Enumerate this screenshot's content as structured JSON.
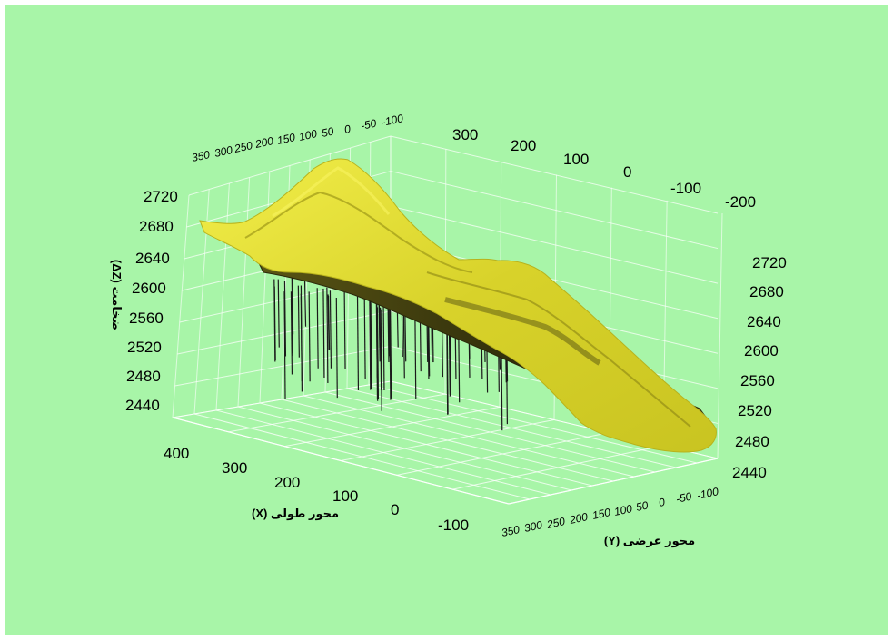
{
  "chart_data": {
    "type": "surface-3d",
    "colors": {
      "background": "#a8f5a8",
      "surface": "#e4e02c",
      "surface_shadow": "#3c3a10",
      "borehole": "#1a1a1a",
      "grid": "#ffffff"
    },
    "axes": {
      "x": {
        "label": "محور طولی (X)",
        "ticks": [
          "400",
          "300",
          "200",
          "100",
          "0",
          "-100"
        ],
        "top_ticks": [
          "300",
          "200",
          "100",
          "0",
          "-100",
          "-200"
        ]
      },
      "y": {
        "label": "محور عرضی (Y)",
        "ticks": [
          "350",
          "300",
          "250",
          "200",
          "150",
          "100",
          "50",
          "0",
          "-50",
          "-100"
        ],
        "top_ticks": [
          "350",
          "300",
          "250",
          "200",
          "150",
          "100",
          "50",
          "0",
          "-50",
          "-100"
        ]
      },
      "z": {
        "label": "ضخامت (ΔZ)",
        "ticks_left": [
          "2720",
          "2680",
          "2640",
          "2600",
          "2560",
          "2520",
          "2480",
          "2440"
        ],
        "ticks_right": [
          "2720",
          "2680",
          "2640",
          "2600",
          "2560",
          "2520",
          "2480",
          "2440"
        ],
        "range": [
          2440,
          2720
        ]
      }
    },
    "grid": true
  }
}
